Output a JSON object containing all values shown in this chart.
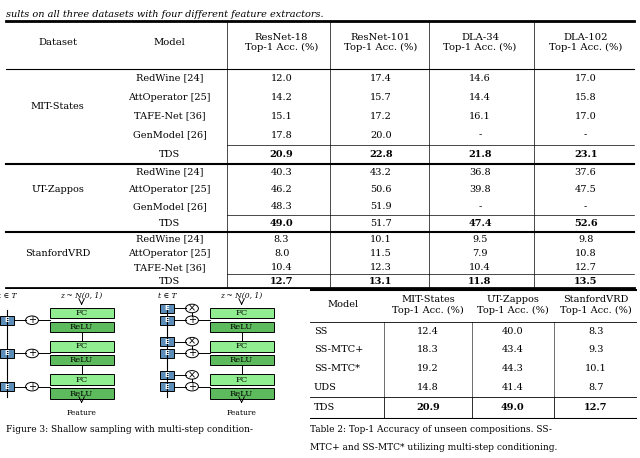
{
  "top_text": "sults on all three datasets with four different feature extractors.",
  "caption": "Figure 3: Shallow sampling with multi-step condition-",
  "caption2": "MTC+ and SS-MTC* utilizing multi-step conditioning.",
  "table2_caption": "Table 2: Top-1 Accuracy of unseen compositions. SS-",
  "table1": {
    "sections": [
      {
        "dataset": "MIT-States",
        "rows": [
          [
            "RedWine [24]",
            "12.0",
            "17.4",
            "14.6",
            "17.0"
          ],
          [
            "AttOperator [25]",
            "14.2",
            "15.7",
            "14.4",
            "15.8"
          ],
          [
            "TAFE-Net [36]",
            "15.1",
            "17.2",
            "16.1",
            "17.0"
          ],
          [
            "GenModel [26]",
            "17.8",
            "20.0",
            "-",
            "-"
          ]
        ],
        "tds_row": [
          "TDS",
          "20.9",
          "22.8",
          "21.8",
          "23.1"
        ],
        "tds_bold": [
          true,
          true,
          true,
          true
        ]
      },
      {
        "dataset": "UT-Zappos",
        "rows": [
          [
            "RedWine [24]",
            "40.3",
            "43.2",
            "36.8",
            "37.6"
          ],
          [
            "AttOperator [25]",
            "46.2",
            "50.6",
            "39.8",
            "47.5"
          ],
          [
            "GenModel [26]",
            "48.3",
            "51.9",
            "-",
            "-"
          ]
        ],
        "tds_row": [
          "TDS",
          "49.0",
          "51.7",
          "47.4",
          "52.6"
        ],
        "tds_bold": [
          true,
          false,
          true,
          true
        ]
      },
      {
        "dataset": "StanfordVRD",
        "rows": [
          [
            "RedWine [24]",
            "8.3",
            "10.1",
            "9.5",
            "9.8"
          ],
          [
            "AttOperator [25]",
            "8.0",
            "11.5",
            "7.9",
            "10.8"
          ],
          [
            "TAFE-Net [36]",
            "10.4",
            "12.3",
            "10.4",
            "12.7"
          ]
        ],
        "tds_row": [
          "TDS",
          "12.7",
          "13.1",
          "11.8",
          "13.5"
        ],
        "tds_bold": [
          true,
          true,
          true,
          true
        ]
      }
    ]
  },
  "table2": {
    "rows": [
      [
        "SS",
        "12.4",
        "40.0",
        "8.3"
      ],
      [
        "SS-MTC+",
        "18.3",
        "43.4",
        "9.3"
      ],
      [
        "SS-MTC*",
        "19.2",
        "44.3",
        "10.1"
      ],
      [
        "UDS",
        "14.8",
        "41.4",
        "8.7"
      ]
    ],
    "tds_row": [
      "TDS",
      "20.9",
      "49.0",
      "12.7"
    ],
    "tds_bold": [
      true,
      true,
      true
    ]
  },
  "light_green": "#90EE90",
  "medium_green": "#5DBB5D",
  "blue_gray": "#5B8DB8"
}
